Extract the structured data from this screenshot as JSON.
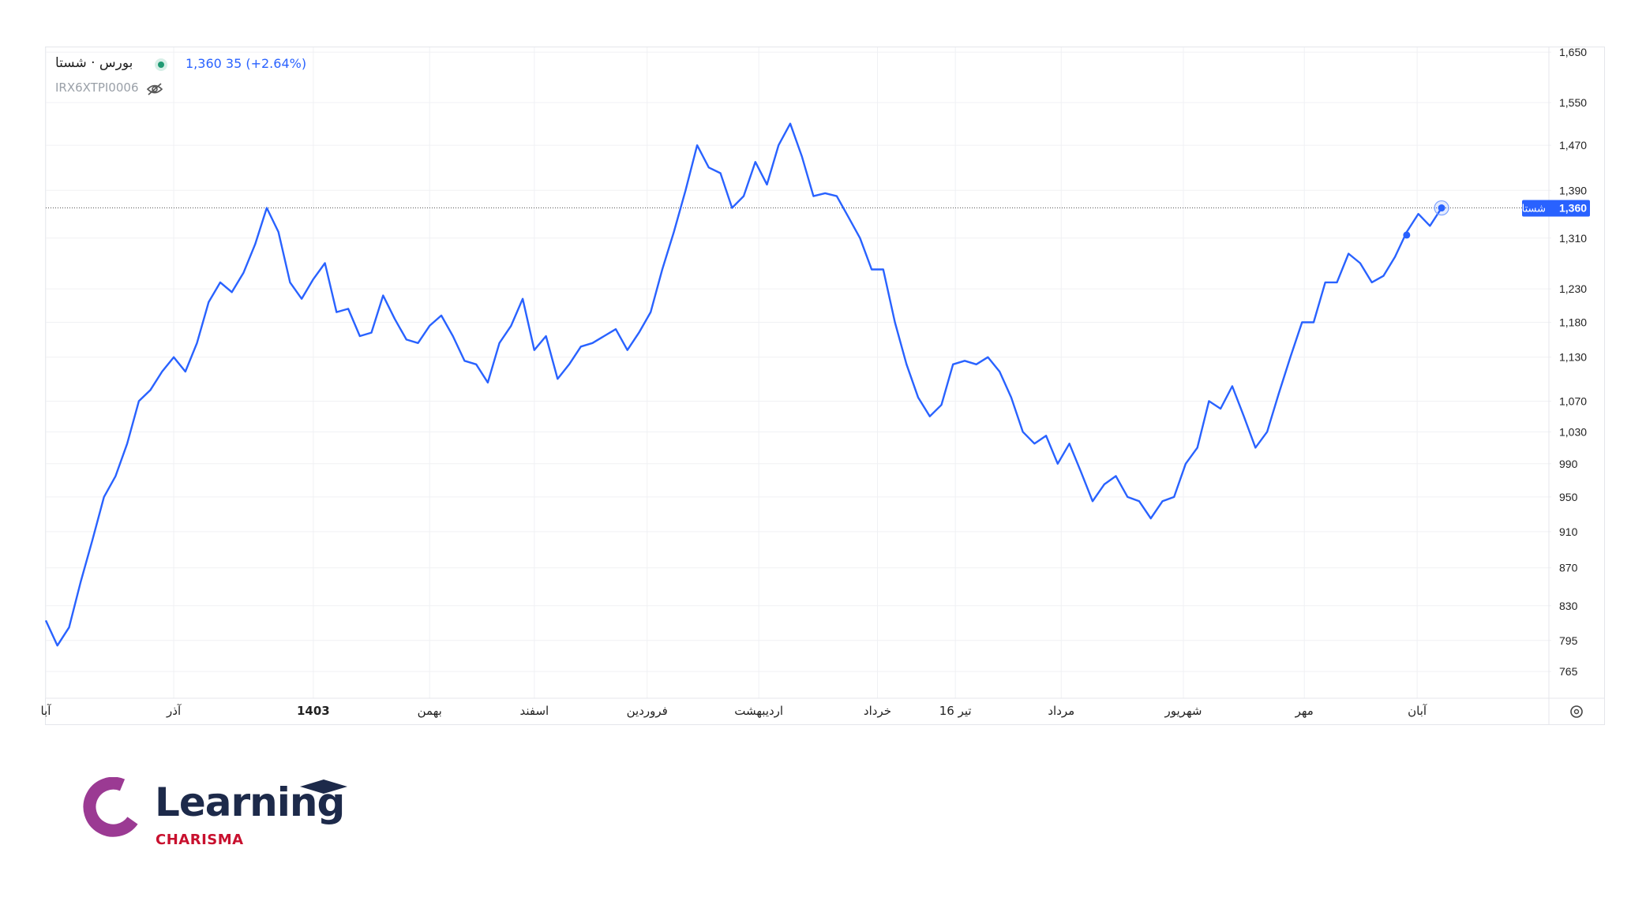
{
  "header": {
    "symbol": "بورس · شستا",
    "price": "1,360",
    "change": "35 (+2.64%)",
    "isin": "IRX6XTPI0006"
  },
  "icons": {
    "status": "status-dot-icon",
    "eye": "eye-off-icon",
    "settings": "settings-icon"
  },
  "colors": {
    "line": "#2962ff",
    "status": "#1f9a73",
    "brand_navy": "#1d2a4a",
    "brand_red": "#c8102e",
    "brand_purple": "#9b3a93"
  },
  "price_tag": {
    "name": "شستا",
    "value": "1,360"
  },
  "logo": {
    "word": "Learning",
    "sub": "CHARISMA"
  },
  "chart_data": {
    "type": "line",
    "ylim": [
      740,
      1660
    ],
    "y_scale": "log",
    "yticks": [
      1650,
      1550,
      1470,
      1390,
      1310,
      1230,
      1180,
      1130,
      1070,
      1030,
      990,
      950,
      910,
      870,
      830,
      795,
      765
    ],
    "ytick_labels": [
      "1,650",
      "1,550",
      "1,470",
      "1,390",
      "1,310",
      "1,230",
      "1,180",
      "1,130",
      "1,070",
      "1,030",
      "990",
      "950",
      "910",
      "870",
      "830",
      "795",
      "765"
    ],
    "xticks": [
      {
        "label": "آبا",
        "x": 0
      },
      {
        "label": "آذر",
        "x": 11
      },
      {
        "label": "1403",
        "x": 23
      },
      {
        "label": "بهمن",
        "x": 33
      },
      {
        "label": "اسفند",
        "x": 42
      },
      {
        "label": "فروردین",
        "x": 51.7
      },
      {
        "label": "اردیبهشت",
        "x": 61.3
      },
      {
        "label": "خرداد",
        "x": 71.5
      },
      {
        "label": "16 تیر",
        "x": 78.2
      },
      {
        "label": "مرداد",
        "x": 87.3
      },
      {
        "label": "شهریور",
        "x": 97.8
      },
      {
        "label": "مهر",
        "x": 108.2
      },
      {
        "label": "آبان",
        "x": 117.9
      }
    ],
    "current_value": 1360,
    "series": [
      {
        "x": [
          0,
          1,
          2,
          3,
          4,
          5,
          6,
          7,
          8,
          9,
          10,
          11,
          12,
          13,
          14,
          15,
          16,
          17,
          18,
          19,
          20,
          21,
          22,
          23,
          24,
          25,
          26,
          27,
          28,
          29,
          30,
          31,
          32,
          33,
          34,
          35,
          36,
          37,
          38,
          39,
          40,
          41,
          42,
          43,
          44,
          45,
          46,
          47,
          48,
          49,
          50,
          51,
          52,
          53,
          54,
          55,
          56,
          57,
          58,
          59,
          60,
          61,
          62,
          63,
          64,
          65,
          66,
          67,
          68,
          69,
          70,
          71,
          72,
          73,
          74,
          75,
          76,
          77,
          78,
          79,
          80,
          81,
          82,
          83,
          84,
          85,
          86,
          87,
          88,
          89,
          90,
          91,
          92,
          93,
          94,
          95,
          96,
          97,
          98,
          99,
          100,
          101,
          102,
          103,
          104,
          105,
          106,
          107,
          108,
          109,
          110,
          111,
          112,
          113,
          114,
          115,
          116,
          117,
          118,
          119,
          120
        ],
        "y": [
          815,
          790,
          808,
          855,
          900,
          950,
          975,
          1015,
          1070,
          1085,
          1110,
          1130,
          1110,
          1150,
          1210,
          1240,
          1225,
          1255,
          1300,
          1360,
          1320,
          1240,
          1215,
          1245,
          1270,
          1195,
          1200,
          1160,
          1165,
          1220,
          1185,
          1155,
          1150,
          1175,
          1190,
          1160,
          1125,
          1120,
          1095,
          1150,
          1175,
          1215,
          1140,
          1160,
          1100,
          1120,
          1145,
          1150,
          1160,
          1170,
          1140,
          1165,
          1195,
          1260,
          1320,
          1390,
          1470,
          1430,
          1420,
          1360,
          1380,
          1440,
          1400,
          1470,
          1510,
          1450,
          1380,
          1385,
          1380,
          1345,
          1310,
          1260,
          1260,
          1180,
          1120,
          1075,
          1050,
          1065,
          1120,
          1125,
          1120,
          1130,
          1110,
          1075,
          1030,
          1015,
          1025,
          990,
          1015,
          980,
          945,
          965,
          975,
          950,
          945,
          925,
          945,
          950,
          990,
          1010,
          1070,
          1060,
          1090,
          1050,
          1010,
          1030,
          1080,
          1130,
          1180,
          1180,
          1240,
          1240,
          1285,
          1270,
          1240,
          1250,
          1280,
          1320,
          1350,
          1330,
          1360
        ]
      }
    ],
    "markers": [
      {
        "x": 117,
        "y": 1315
      },
      {
        "x": 120,
        "y": 1360
      }
    ]
  }
}
